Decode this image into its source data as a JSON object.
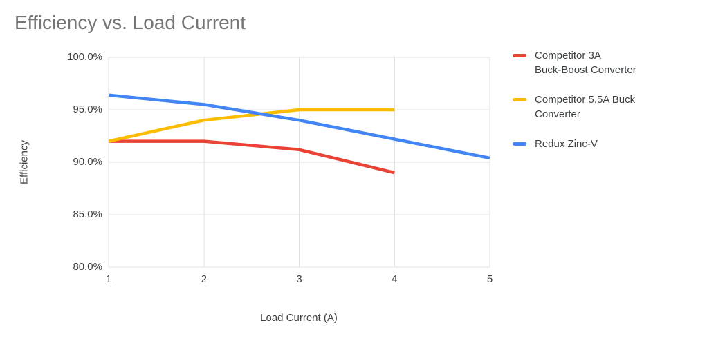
{
  "title": "Efficiency vs. Load Current",
  "axes": {
    "y_title": "Efficiency",
    "x_title": "Load Current (A)",
    "y_ticks": [
      "100.0%",
      "95.0%",
      "90.0%",
      "85.0%",
      "80.0%"
    ],
    "x_ticks": [
      "1",
      "2",
      "3",
      "4",
      "5"
    ]
  },
  "legend": {
    "position": "right",
    "entries": [
      {
        "label": "Competitor 3A\nBuck-Boost Converter",
        "swatch_color": "#EA4335"
      },
      {
        "label": "Competitor 5.5A Buck\nConverter",
        "swatch_color": "#FBBC04"
      },
      {
        "label": "Redux Zinc-V",
        "swatch_color": "#4285F4"
      }
    ]
  },
  "chart_data": {
    "type": "line",
    "title": "Efficiency vs. Load Current",
    "xlabel": "Load Current (A)",
    "ylabel": "Efficiency",
    "xlim": [
      1,
      5
    ],
    "ylim": [
      80,
      100
    ],
    "y_tick_step": 5,
    "y_unit": "%",
    "grid": true,
    "legend_position": "right",
    "series": [
      {
        "name": "Competitor 3A Buck-Boost Converter",
        "color": "#EA4335",
        "x": [
          1,
          2,
          3,
          4
        ],
        "values": [
          92.0,
          92.0,
          91.2,
          89.0
        ]
      },
      {
        "name": "Competitor 5.5A Buck Converter",
        "color": "#FBBC04",
        "x": [
          1,
          2,
          3,
          4
        ],
        "values": [
          92.0,
          94.0,
          95.0,
          95.0
        ]
      },
      {
        "name": "Redux Zinc-V",
        "color": "#4285F4",
        "x": [
          1,
          2,
          3,
          4,
          5
        ],
        "values": [
          96.4,
          95.5,
          94.0,
          92.2,
          90.4
        ]
      }
    ]
  }
}
